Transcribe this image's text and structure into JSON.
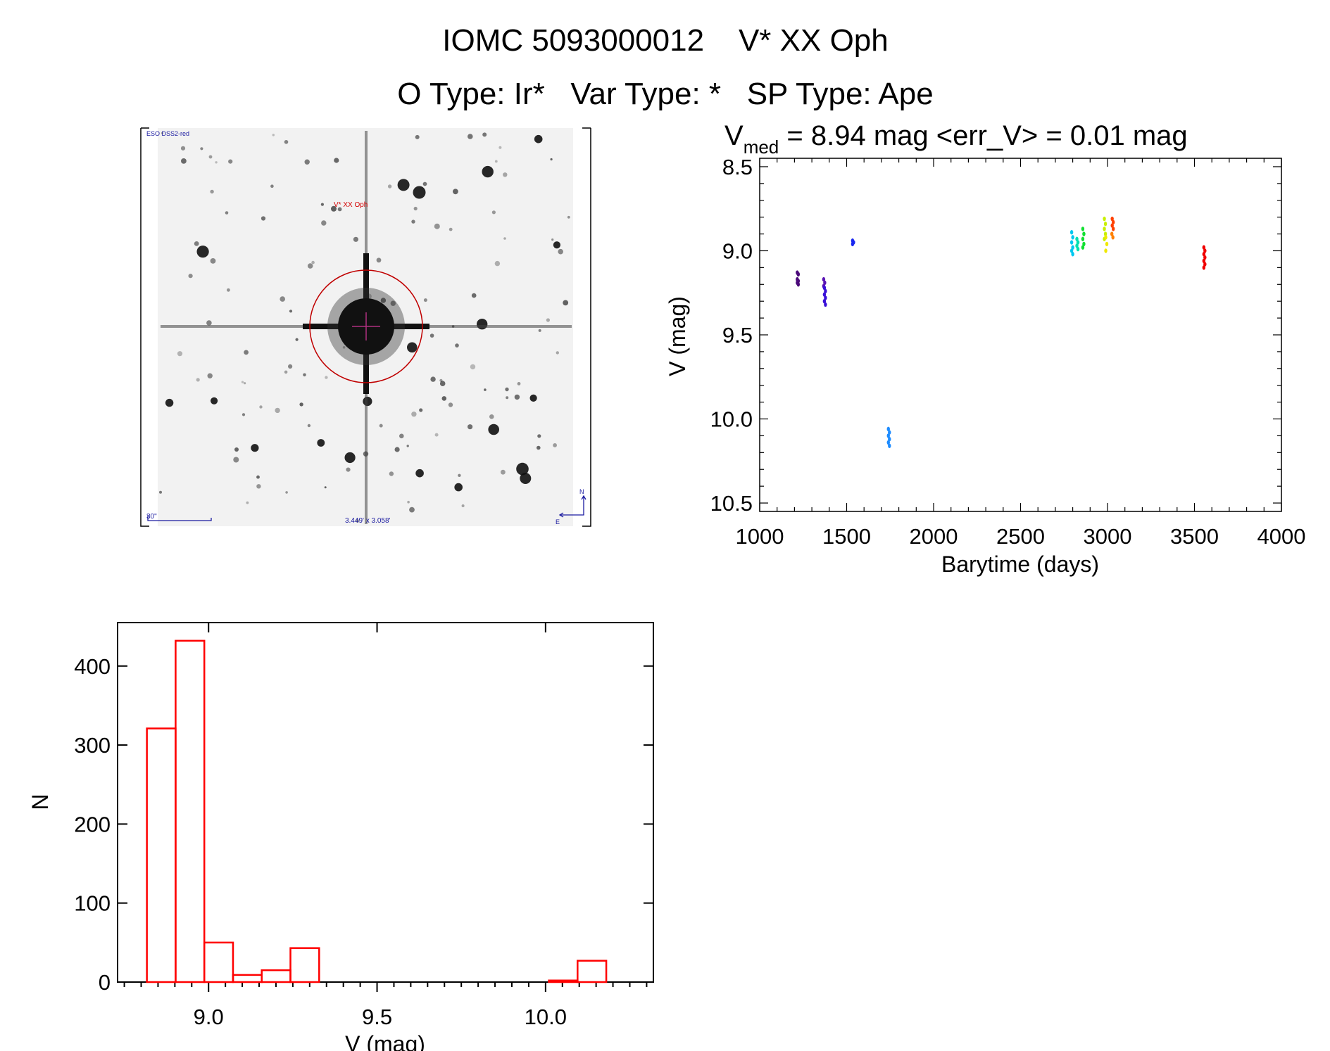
{
  "header": {
    "title": "IOMC 5093000012    V* XX Oph",
    "subtitle": "O Type: Ir*   Var Type: *   SP Type: Ape"
  },
  "image_panel": {
    "survey_label": "ESO DSS2-red",
    "target_label": "V* XX Oph",
    "scale_label": "30\"",
    "field_size_label": "3.449' x 3.058'",
    "north_label": "N",
    "east_label": "E",
    "label_color": "#1a1aa0",
    "target_color": "#d40000"
  },
  "chart_data": [
    {
      "type": "scatter",
      "title_prefix": "V",
      "title_subscript": "med",
      "title_rest": " = 8.94 mag <err_V> = 0.01 mag",
      "xlabel": "Barytime (days)",
      "ylabel": "V (mag)",
      "xlim": [
        1000,
        4000
      ],
      "ylim": [
        10.55,
        8.45
      ],
      "y_inverted": true,
      "xticks": [
        "1000",
        "1500",
        "2000",
        "2500",
        "3000",
        "3500",
        "4000"
      ],
      "yticks": [
        "8.5",
        "9.0",
        "9.5",
        "10.0",
        "10.5"
      ],
      "color_scale": "rainbow by time",
      "clusters": [
        {
          "x": 1216,
          "color": "#4b0a7a",
          "V": [
            9.13,
            9.14,
            9.17,
            9.18,
            9.19,
            9.2
          ]
        },
        {
          "x": 1368,
          "color": "#5a14b4",
          "V": [
            9.17,
            9.19,
            9.21
          ]
        },
        {
          "x": 1372,
          "color": "#3a10d8",
          "V": [
            9.22,
            9.24,
            9.26,
            9.28,
            9.3,
            9.32
          ]
        },
        {
          "x": 1534,
          "color": "#1a28f0",
          "V": [
            8.94,
            8.95,
            8.96
          ]
        },
        {
          "x": 1740,
          "color": "#1e8cff",
          "V": [
            10.06,
            10.08,
            10.1,
            10.12,
            10.14,
            10.16
          ]
        },
        {
          "x": 2794,
          "color": "#00c8f0",
          "V": [
            8.89,
            8.92,
            8.95,
            8.98,
            9.0,
            9.02
          ]
        },
        {
          "x": 2824,
          "color": "#00e0b0",
          "V": [
            8.93,
            8.95,
            8.97,
            8.99
          ]
        },
        {
          "x": 2858,
          "color": "#10e030",
          "V": [
            8.87,
            8.9,
            8.93,
            8.96,
            8.98
          ]
        },
        {
          "x": 2982,
          "color": "#c8f000",
          "V": [
            8.81,
            8.84,
            8.87,
            8.9,
            8.93
          ]
        },
        {
          "x": 2990,
          "color": "#f0e800",
          "V": [
            8.92,
            8.96,
            9.0
          ]
        },
        {
          "x": 3027,
          "color": "#ff4000",
          "V": [
            8.81,
            8.83,
            8.85,
            8.87
          ]
        },
        {
          "x": 3025,
          "color": "#ff8000",
          "V": [
            8.9,
            8.92
          ]
        },
        {
          "x": 3554,
          "color": "#f00000",
          "V": [
            8.98,
            9.0,
            9.02,
            9.04,
            9.06,
            9.08,
            9.1
          ]
        }
      ]
    },
    {
      "type": "bar",
      "subtype": "histogram",
      "xlabel": "V (mag)",
      "ylabel": "N",
      "xlim": [
        8.73,
        10.32
      ],
      "ylim": [
        0,
        455
      ],
      "xticks": [
        "9.0",
        "9.5",
        "10.0"
      ],
      "yticks": [
        "0",
        "100",
        "200",
        "300",
        "400"
      ],
      "bin_start": 8.817,
      "bin_width": 0.0852,
      "counts": [
        321,
        432,
        50,
        9,
        15,
        43,
        0,
        0,
        0,
        0,
        0,
        0,
        0,
        0,
        2,
        27
      ],
      "color": "#ff0000"
    }
  ]
}
